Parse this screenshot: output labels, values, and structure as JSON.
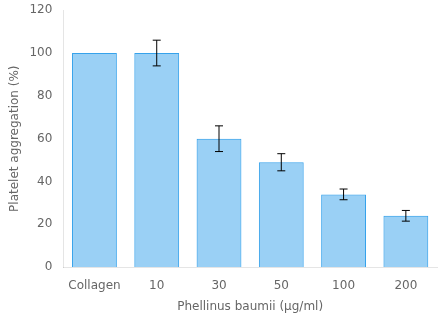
{
  "chart_data": {
    "type": "bar",
    "categories": [
      "Collagen",
      "10",
      "30",
      "50",
      "100",
      "200"
    ],
    "values": [
      100,
      100,
      60,
      49,
      34,
      24
    ],
    "errors": [
      0,
      6,
      6,
      4,
      2.5,
      2.5
    ],
    "ylabel": "Platelet aggregation (%)",
    "xlabel": "Phellinus baumii (μg/ml)",
    "ylim": [
      0,
      120
    ],
    "yticks": [
      0,
      20,
      40,
      60,
      80,
      100,
      120
    ],
    "grid": false
  }
}
